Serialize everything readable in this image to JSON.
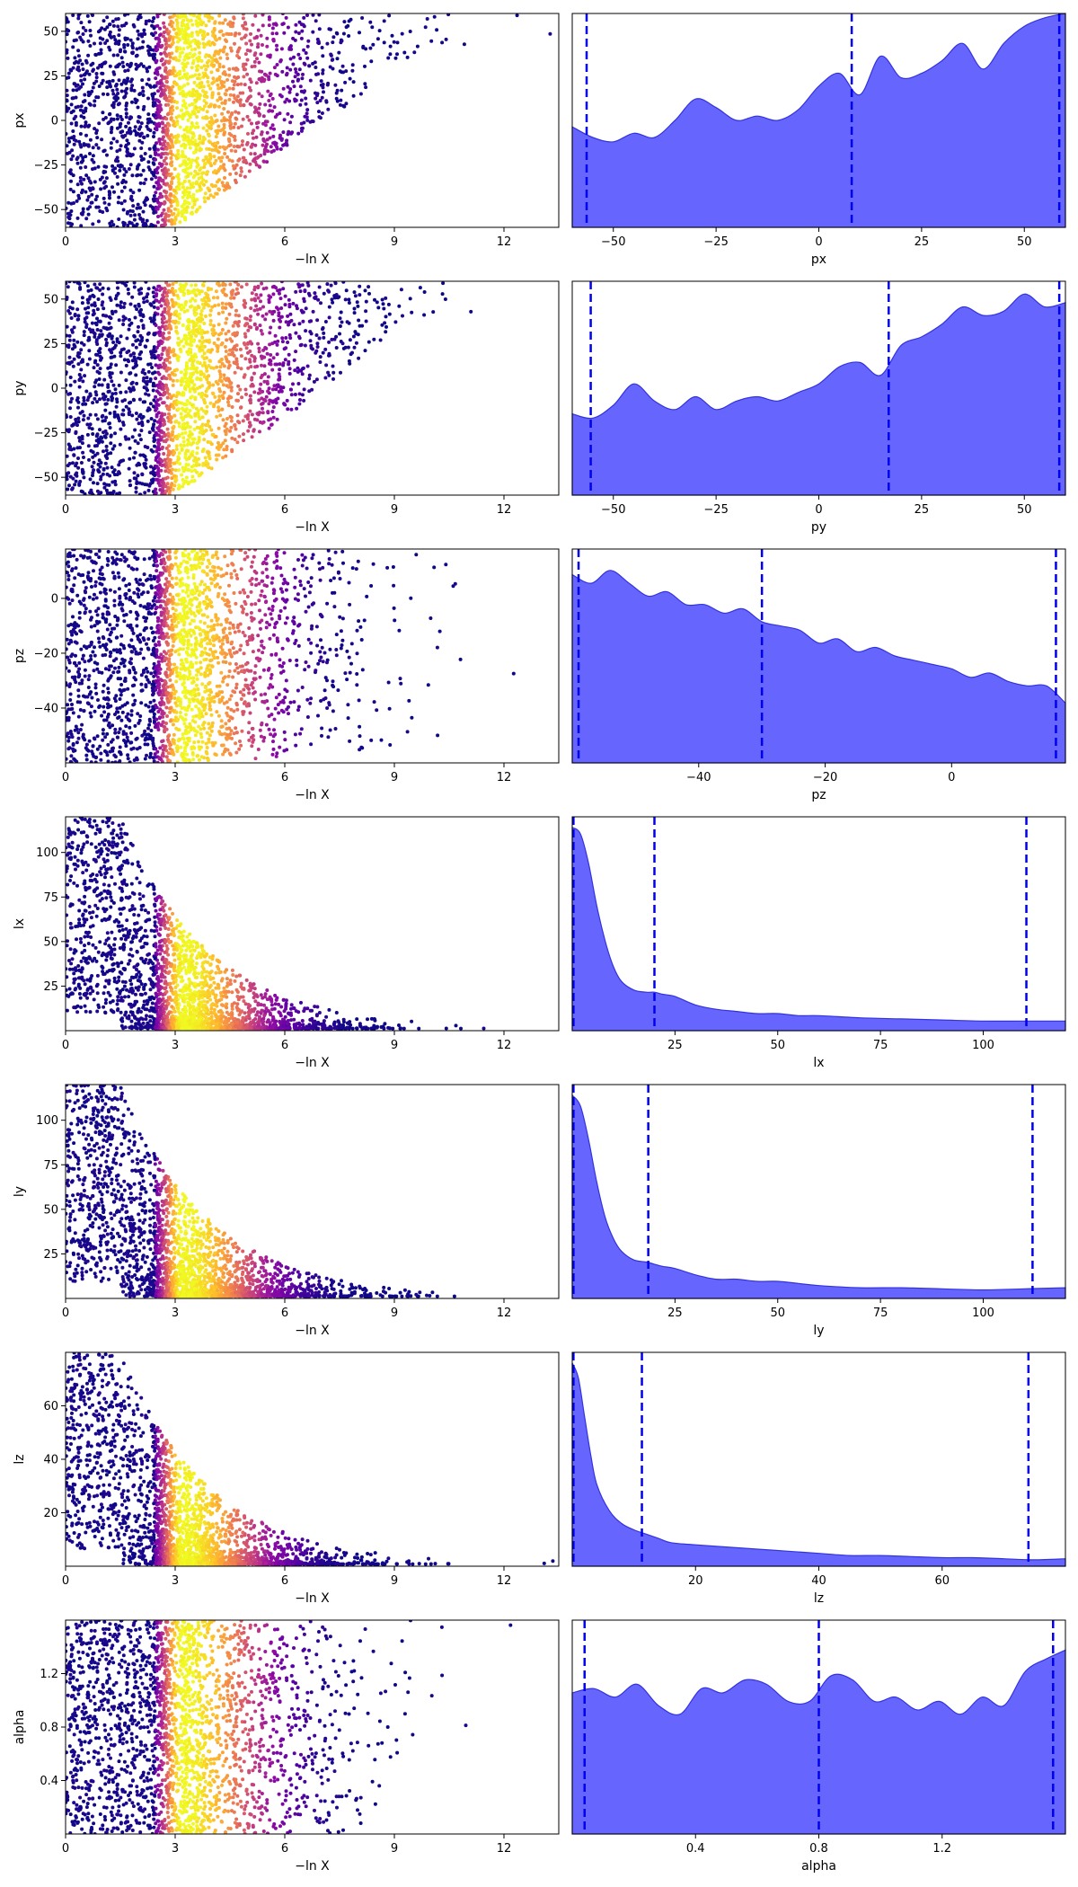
{
  "colors": {
    "kde_fill": "#6666ff",
    "kde_edge": "#3333dd",
    "quantile_line": "#0000ee",
    "colormap": "plasma"
  },
  "chart_data": [
    {
      "type": "scatter",
      "panel": "trace",
      "param": "px",
      "xlabel": "−ln X",
      "ylabel": "px",
      "xlim": [
        0,
        13.5
      ],
      "ylim": [
        -60,
        60
      ],
      "xticks": [
        0,
        3,
        6,
        9,
        12
      ],
      "yticks": [
        -50,
        -25,
        0,
        25,
        50
      ],
      "point_count": 2400,
      "colormap": "plasma",
      "density_peak_x": 3.2
    },
    {
      "type": "area",
      "panel": "kde",
      "param": "px",
      "xlabel": "px",
      "xlim": [
        -60,
        60
      ],
      "xticks": [
        -50,
        -25,
        0,
        25,
        50
      ],
      "quantiles": [
        -56.5,
        8.0,
        58.5
      ],
      "x": [
        -60,
        -55,
        -50,
        -45,
        -40,
        -35,
        -30,
        -25,
        -20,
        -15,
        -10,
        -5,
        0,
        5,
        10,
        15,
        20,
        25,
        30,
        35,
        40,
        45,
        50,
        55,
        60
      ],
      "density": [
        0.47,
        0.42,
        0.4,
        0.44,
        0.42,
        0.5,
        0.6,
        0.56,
        0.5,
        0.52,
        0.5,
        0.55,
        0.66,
        0.72,
        0.62,
        0.8,
        0.7,
        0.72,
        0.78,
        0.86,
        0.74,
        0.86,
        0.94,
        0.98,
        1.0
      ]
    },
    {
      "type": "scatter",
      "panel": "trace",
      "param": "py",
      "xlabel": "−ln X",
      "ylabel": "py",
      "xlim": [
        0,
        13.5
      ],
      "ylim": [
        -60,
        60
      ],
      "xticks": [
        0,
        3,
        6,
        9,
        12
      ],
      "yticks": [
        -50,
        -25,
        0,
        25,
        50
      ],
      "point_count": 2400,
      "colormap": "plasma",
      "density_peak_x": 3.2
    },
    {
      "type": "area",
      "panel": "kde",
      "param": "py",
      "xlabel": "py",
      "xlim": [
        -60,
        60
      ],
      "xticks": [
        -50,
        -25,
        0,
        25,
        50
      ],
      "quantiles": [
        -55.5,
        17.0,
        58.5
      ],
      "x": [
        -60,
        -55,
        -50,
        -45,
        -40,
        -35,
        -30,
        -25,
        -20,
        -15,
        -10,
        -5,
        0,
        5,
        10,
        15,
        20,
        25,
        30,
        35,
        40,
        45,
        50,
        55,
        60
      ],
      "density": [
        0.38,
        0.36,
        0.42,
        0.52,
        0.44,
        0.4,
        0.46,
        0.4,
        0.44,
        0.46,
        0.44,
        0.48,
        0.52,
        0.6,
        0.62,
        0.56,
        0.7,
        0.74,
        0.8,
        0.88,
        0.84,
        0.86,
        0.94,
        0.88,
        0.9
      ]
    },
    {
      "type": "scatter",
      "panel": "trace",
      "param": "pz",
      "xlabel": "−ln X",
      "ylabel": "pz",
      "xlim": [
        0,
        13.5
      ],
      "ylim": [
        -60,
        18
      ],
      "xticks": [
        0,
        3,
        6,
        9,
        12
      ],
      "yticks": [
        -40,
        -20,
        0
      ],
      "point_count": 2400,
      "colormap": "plasma",
      "density_peak_x": 3.2
    },
    {
      "type": "area",
      "panel": "kde",
      "param": "pz",
      "xlabel": "pz",
      "xlim": [
        -60,
        18
      ],
      "xticks": [
        -40,
        -20,
        0
      ],
      "quantiles": [
        -59.0,
        -30.0,
        16.5
      ],
      "x": [
        -60,
        -57,
        -54,
        -51,
        -48,
        -45,
        -42,
        -39,
        -36,
        -33,
        -30,
        -27,
        -24,
        -21,
        -18,
        -15,
        -12,
        -9,
        -6,
        -3,
        0,
        3,
        6,
        9,
        12,
        15,
        18
      ],
      "density": [
        0.88,
        0.84,
        0.9,
        0.84,
        0.78,
        0.8,
        0.74,
        0.74,
        0.7,
        0.72,
        0.66,
        0.64,
        0.62,
        0.56,
        0.58,
        0.52,
        0.54,
        0.5,
        0.48,
        0.46,
        0.44,
        0.4,
        0.42,
        0.38,
        0.36,
        0.36,
        0.28
      ]
    },
    {
      "type": "scatter",
      "panel": "trace",
      "param": "lx",
      "xlabel": "−ln X",
      "ylabel": "lx",
      "xlim": [
        0,
        13.5
      ],
      "ylim": [
        0,
        120
      ],
      "xticks": [
        0,
        3,
        6,
        9,
        12
      ],
      "yticks": [
        25,
        50,
        75,
        100
      ],
      "point_count": 2400,
      "colormap": "plasma",
      "density_peak_x": 3.2
    },
    {
      "type": "area",
      "panel": "kde",
      "param": "lx",
      "xlabel": "lx",
      "xlim": [
        0,
        120
      ],
      "xticks": [
        25,
        50,
        75,
        100
      ],
      "quantiles": [
        0.3,
        20.0,
        110.5
      ],
      "x": [
        0,
        2,
        4,
        6,
        8,
        10,
        12,
        15,
        18,
        20,
        22,
        25,
        30,
        35,
        40,
        45,
        50,
        55,
        60,
        70,
        80,
        90,
        100,
        110,
        120
      ],
      "density": [
        0.95,
        0.92,
        0.78,
        0.58,
        0.42,
        0.3,
        0.23,
        0.19,
        0.18,
        0.18,
        0.17,
        0.16,
        0.12,
        0.1,
        0.09,
        0.08,
        0.08,
        0.07,
        0.07,
        0.06,
        0.055,
        0.05,
        0.045,
        0.045,
        0.045
      ]
    },
    {
      "type": "scatter",
      "panel": "trace",
      "param": "ly",
      "xlabel": "−ln X",
      "ylabel": "ly",
      "xlim": [
        0,
        13.5
      ],
      "ylim": [
        0,
        120
      ],
      "xticks": [
        0,
        3,
        6,
        9,
        12
      ],
      "yticks": [
        25,
        50,
        75,
        100
      ],
      "point_count": 2400,
      "colormap": "plasma",
      "density_peak_x": 3.2
    },
    {
      "type": "area",
      "panel": "kde",
      "param": "ly",
      "xlabel": "ly",
      "xlim": [
        0,
        120
      ],
      "xticks": [
        25,
        50,
        75,
        100
      ],
      "quantiles": [
        0.3,
        18.5,
        112.0
      ],
      "x": [
        0,
        2,
        4,
        6,
        8,
        10,
        12,
        15,
        18,
        20,
        22,
        25,
        30,
        35,
        40,
        45,
        50,
        55,
        60,
        70,
        80,
        90,
        100,
        110,
        120
      ],
      "density": [
        0.95,
        0.9,
        0.74,
        0.54,
        0.38,
        0.28,
        0.22,
        0.18,
        0.17,
        0.16,
        0.15,
        0.14,
        0.11,
        0.09,
        0.09,
        0.08,
        0.08,
        0.07,
        0.06,
        0.05,
        0.05,
        0.045,
        0.04,
        0.045,
        0.05
      ]
    },
    {
      "type": "scatter",
      "panel": "trace",
      "param": "lz",
      "xlabel": "−ln X",
      "ylabel": "lz",
      "xlim": [
        0,
        13.5
      ],
      "ylim": [
        0,
        80
      ],
      "xticks": [
        0,
        3,
        6,
        9,
        12
      ],
      "yticks": [
        20,
        40,
        60
      ],
      "point_count": 2400,
      "colormap": "plasma",
      "density_peak_x": 3.2
    },
    {
      "type": "area",
      "panel": "kde",
      "param": "lz",
      "xlabel": "lz",
      "xlim": [
        0,
        80
      ],
      "xticks": [
        20,
        40,
        60
      ],
      "quantiles": [
        0.2,
        11.3,
        74.0
      ],
      "x": [
        0,
        1,
        2,
        3,
        4,
        6,
        8,
        10,
        12,
        14,
        16,
        20,
        25,
        30,
        35,
        40,
        45,
        50,
        55,
        60,
        65,
        70,
        75,
        80
      ],
      "density": [
        0.95,
        0.88,
        0.7,
        0.52,
        0.38,
        0.26,
        0.2,
        0.17,
        0.15,
        0.13,
        0.11,
        0.1,
        0.09,
        0.08,
        0.07,
        0.06,
        0.05,
        0.05,
        0.045,
        0.04,
        0.04,
        0.035,
        0.03,
        0.035
      ]
    },
    {
      "type": "scatter",
      "panel": "trace",
      "param": "alpha",
      "xlabel": "−ln X",
      "ylabel": "alpha",
      "xlim": [
        0,
        13.5
      ],
      "ylim": [
        0.0,
        1.6
      ],
      "xticks": [
        0,
        3,
        6,
        9,
        12
      ],
      "yticks": [
        0.4,
        0.8,
        1.2
      ],
      "point_count": 2400,
      "colormap": "plasma",
      "density_peak_x": 3.2
    },
    {
      "type": "area",
      "panel": "kde",
      "param": "alpha",
      "xlabel": "alpha",
      "xlim": [
        0.0,
        1.6
      ],
      "xticks": [
        0.4,
        0.8,
        1.2
      ],
      "quantiles": [
        0.04,
        0.8,
        1.56
      ],
      "x": [
        0.0,
        0.07,
        0.14,
        0.21,
        0.28,
        0.35,
        0.42,
        0.49,
        0.56,
        0.63,
        0.7,
        0.77,
        0.84,
        0.91,
        0.98,
        1.05,
        1.12,
        1.19,
        1.26,
        1.33,
        1.4,
        1.47,
        1.54,
        1.6
      ],
      "density": [
        0.66,
        0.68,
        0.64,
        0.7,
        0.6,
        0.56,
        0.68,
        0.66,
        0.72,
        0.7,
        0.62,
        0.62,
        0.74,
        0.72,
        0.62,
        0.64,
        0.58,
        0.62,
        0.56,
        0.64,
        0.6,
        0.76,
        0.82,
        0.86
      ]
    }
  ]
}
